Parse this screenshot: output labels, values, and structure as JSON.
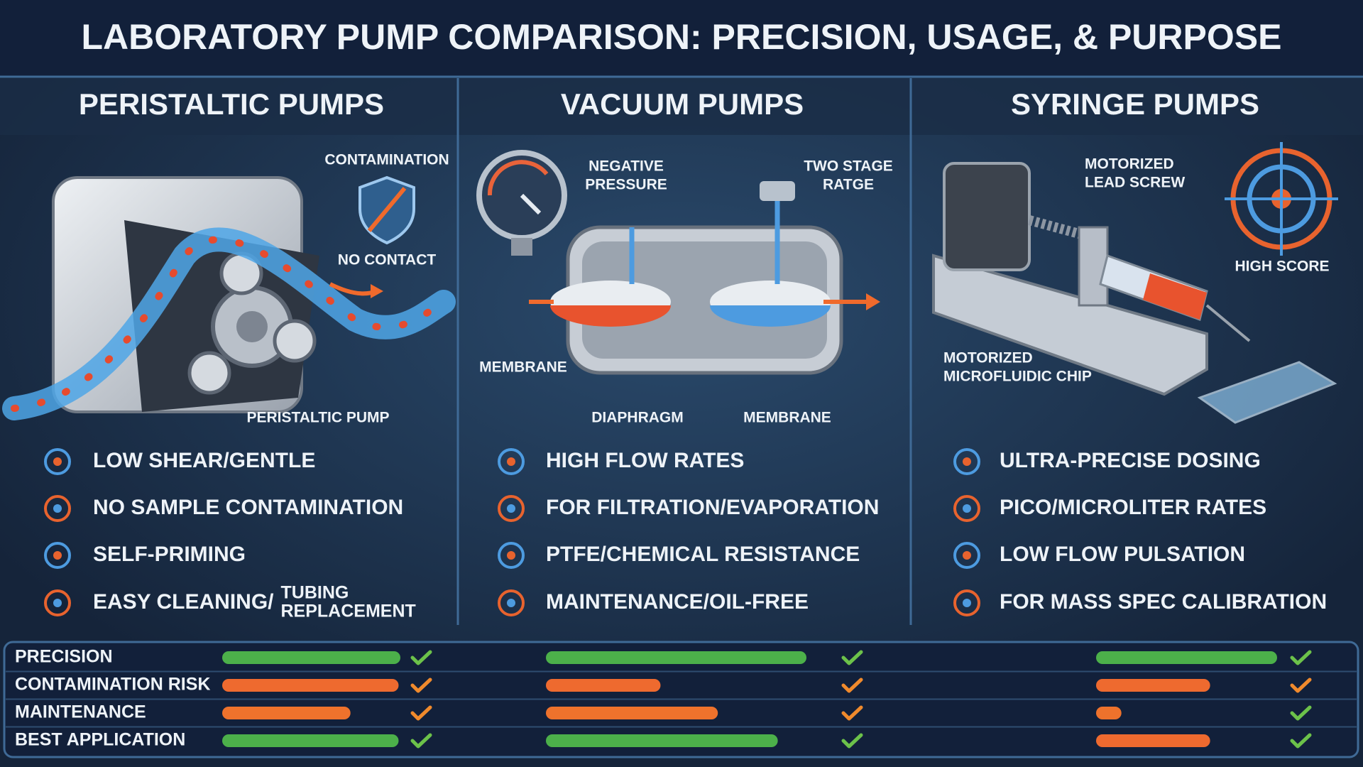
{
  "title": "LABORATORY PUMP COMPARISON: PRECISION, USAGE, & PURPOSE",
  "columns": [
    {
      "heading": "PERISTALTIC PUMPS",
      "labels": [
        [
          "CONTAMINATION"
        ],
        [
          "NO CONTACT"
        ],
        [
          "PERISTALTIC PUMP"
        ]
      ],
      "features": [
        {
          "text": "LOW SHEAR/GENTLE"
        },
        {
          "text": "NO SAMPLE CONTAMINATION"
        },
        {
          "text": "SELF-PRIMING"
        },
        {
          "text": "EASY CLEANING/",
          "note": [
            "TUBING",
            "REPLACEMENT"
          ]
        }
      ],
      "ratings": [
        {
          "value": 100,
          "color": "#4cb04a",
          "check_color": "#6cc24a"
        },
        {
          "value": 99,
          "color": "#ee6a2f",
          "check_color": "#f08a2c"
        },
        {
          "value": 72,
          "color": "#ee722c",
          "check_color": "#f08a2c"
        },
        {
          "value": 99,
          "color": "#4cb04a",
          "check_color": "#6cc24a"
        }
      ]
    },
    {
      "heading": "VACUUM PUMPS",
      "labels": [
        [
          "NEGATIVE",
          "PRESSURE"
        ],
        [
          "TWO STAGE",
          "RATGE"
        ],
        [
          "MEMBRANE"
        ],
        [
          "DIAPHRAGM"
        ],
        [
          "MEMBRANE"
        ]
      ],
      "features": [
        {
          "text": "HIGH FLOW RATES"
        },
        {
          "text": "FOR FILTRATION/EVAPORATION"
        },
        {
          "text": "PTFE/CHEMICAL RESISTANCE"
        },
        {
          "text": "MAINTENANCE/OIL-FREE"
        }
      ],
      "ratings": [
        {
          "value": 100,
          "color": "#4cb04a",
          "check_color": "#6cc24a"
        },
        {
          "value": 44,
          "color": "#ee6a2f",
          "check_color": "#f08a2c"
        },
        {
          "value": 66,
          "color": "#ee722c",
          "check_color": "#f08a2c"
        },
        {
          "value": 89,
          "color": "#4cb04a",
          "check_color": "#6cc24a"
        }
      ]
    },
    {
      "heading": "SYRINGE PUMPS",
      "labels": [
        [
          "MOTORIZED",
          "LEAD SCREW"
        ],
        [
          "HIGH SCORE"
        ],
        [
          "MOTORIZED",
          "MICROFLUIDIC CHIP"
        ]
      ],
      "features": [
        {
          "text": "ULTRA-PRECISE DOSING"
        },
        {
          "text": "PICO/MICROLITER RATES"
        },
        {
          "text": "LOW FLOW PULSATION"
        },
        {
          "text": "FOR MASS SPEC CALIBRATION"
        }
      ],
      "ratings": [
        {
          "value": 100,
          "color": "#4cb04a",
          "check_color": "#6cc24a"
        },
        {
          "value": 63,
          "color": "#ee6a2f",
          "check_color": "#f08a2c"
        },
        {
          "value": 14,
          "color": "#ee722c",
          "check_color": "#6cc24a"
        },
        {
          "value": 63,
          "color": "#ee6a2f",
          "check_color": "#6cc24a"
        }
      ]
    }
  ],
  "metrics": {
    "rows": [
      "PRECISION",
      "CONTAMINATION RISK",
      "MAINTENANCE",
      "BEST APPLICATION"
    ],
    "xlim": [
      0,
      100
    ]
  }
}
